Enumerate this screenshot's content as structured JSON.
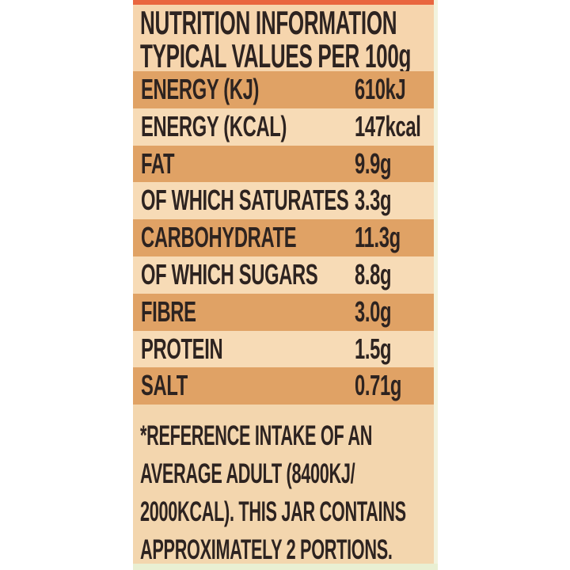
{
  "nutrition_label": {
    "header": {
      "line1": "NUTRITION INFORMATION",
      "line2": "TYPICAL VALUES PER 100g"
    },
    "rows": [
      {
        "name": "ENERGY (KJ)",
        "value": "610kJ"
      },
      {
        "name": "ENERGY (KCAL)",
        "value": "147kcal"
      },
      {
        "name": "FAT",
        "value": "9.9g"
      },
      {
        "name": "OF WHICH SATURATES",
        "value": "3.3g"
      },
      {
        "name": "CARBOHYDRATE",
        "value": "11.3g"
      },
      {
        "name": "OF WHICH SUGARS",
        "value": "8.8g"
      },
      {
        "name": "FIBRE",
        "value": "3.0g"
      },
      {
        "name": "PROTEIN",
        "value": "1.5g"
      },
      {
        "name": "SALT",
        "value": "0.71g"
      }
    ],
    "footnote_lines": [
      "*REFERENCE INTAKE OF AN",
      "AVERAGE ADULT (8400KJ/",
      "2000KCAL). THIS JAR CONTAINS",
      "APPROXIMATELY 2 PORTIONS."
    ],
    "colors": {
      "top_strip": "#e9663f",
      "band_dark": "#e0a265",
      "band_light": "#f7dbb6",
      "header_bg": "#f6d5ad",
      "footer_bg": "#f3d6ae",
      "bottom_strip": "#e9efd2",
      "right_edge": "#f2f3de",
      "text": "#2d2320",
      "page_bg": "#ffffff"
    }
  }
}
